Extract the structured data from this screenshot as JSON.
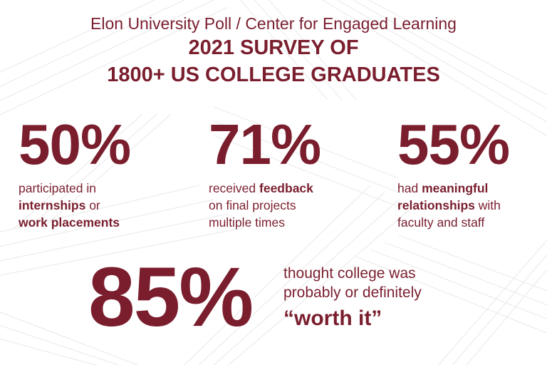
{
  "header": {
    "subtitle": "Elon University Poll / Center for Engaged Learning",
    "title_line1": "2021 SURVEY OF",
    "title_line2": "1800+ US COLLEGE GRADUATES"
  },
  "stats": [
    {
      "value": "50%",
      "line1_a": "participated in",
      "line2_bold": "internships",
      "line2_rest": " or",
      "line3_bold": "work placements"
    },
    {
      "value": "71%",
      "line1_a": "received ",
      "line1_bold": "feedback",
      "line2": "on final projects",
      "line3": "multiple times"
    },
    {
      "value": "55%",
      "line1_a": "had ",
      "line1_bold": "meaningful",
      "line2_bold": "relationships",
      "line2_rest": " with",
      "line3": "faculty and staff"
    }
  ],
  "hero": {
    "value": "85%",
    "line1": "thought college was",
    "line2": "probably or definitely",
    "quote": "“worth it”"
  },
  "colors": {
    "accent": "#7a1e2e",
    "background": "#ffffff",
    "pattern": "#e9e9e9"
  }
}
